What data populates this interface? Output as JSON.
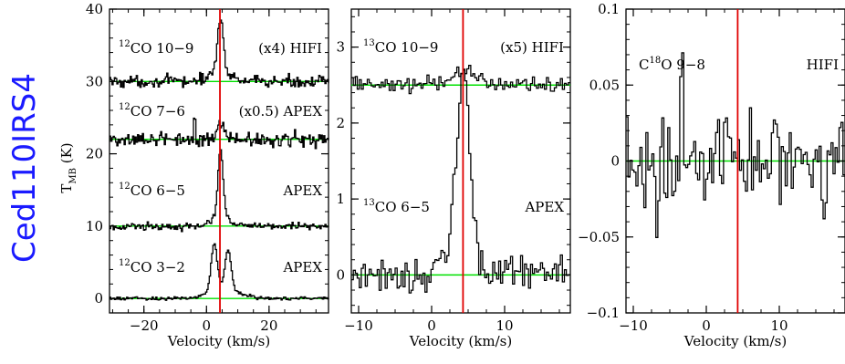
{
  "source_label": "Ced110IRS4",
  "chart_data": [
    {
      "type": "line",
      "xlabel": "Velocity (km/s)",
      "ylabel": "T_MB (K)",
      "xlim": [
        -31,
        39
      ],
      "ylim": [
        -2,
        40
      ],
      "xticks": [
        -20,
        0,
        20
      ],
      "yticks": [
        0,
        10,
        20,
        30,
        40
      ],
      "vline": 4.3,
      "series": [
        {
          "iso": "12",
          "mol": "CO 10-9",
          "factor": "(x4)",
          "tel": "HIFI",
          "baseline": 30,
          "noise": 0.7,
          "comps": [
            {
              "c": 4.3,
              "a": 7.5,
              "w": 0.9
            },
            {
              "c": 4.0,
              "a": 1.5,
              "w": 3.0
            }
          ],
          "spikes": []
        },
        {
          "iso": "12",
          "mol": "CO 7-6",
          "factor": "(x0.5)",
          "tel": "APEX",
          "baseline": 22,
          "noise": 0.9,
          "comps": [
            {
              "c": 4.5,
              "a": 2.2,
              "w": 1.3
            }
          ],
          "spikes": [
            [
              -4,
              3.5
            ],
            [
              0,
              1.5
            ]
          ]
        },
        {
          "iso": "12",
          "mol": "CO 6-5",
          "factor": "",
          "tel": "APEX",
          "baseline": 10,
          "noise": 0.45,
          "comps": [
            {
              "c": 4.3,
              "a": 9,
              "w": 0.8
            },
            {
              "c": 4.4,
              "a": 1.5,
              "w": 2.5
            }
          ],
          "spikes": []
        },
        {
          "iso": "12",
          "mol": "CO 3-2",
          "factor": "",
          "tel": "APEX",
          "baseline": 0,
          "noise": 0.2,
          "comps": [
            {
              "c": 2.3,
              "a": 6.6,
              "w": 1.0
            },
            {
              "c": 6.7,
              "a": 5.5,
              "w": 1.0
            },
            {
              "c": 5.5,
              "a": 1.2,
              "w": 5.0
            }
          ],
          "spikes": []
        }
      ]
    },
    {
      "type": "line",
      "xlabel": "Velocity (km/s)",
      "xlim": [
        -11,
        19
      ],
      "ylim": [
        -0.5,
        3.5
      ],
      "xticks": [
        -10,
        0,
        10
      ],
      "yticks": [
        0,
        1,
        2,
        3
      ],
      "vline": 4.3,
      "series": [
        {
          "iso": "13",
          "mol": "CO 10-9",
          "factor": "(x5)",
          "tel": "HIFI",
          "baseline": 2.5,
          "noise": 0.1,
          "comps": [
            {
              "c": 4.5,
              "a": 0.2,
              "w": 1.5
            }
          ],
          "spikes": []
        },
        {
          "iso": "13",
          "mol": "CO 6-5",
          "factor": "",
          "tel": "APEX",
          "baseline": 0,
          "noise": 0.22,
          "comps": [
            {
              "c": 4.3,
              "a": 2.3,
              "w": 0.85
            },
            {
              "c": 3.5,
              "a": 0.4,
              "w": 1.6
            }
          ],
          "spikes": []
        }
      ]
    },
    {
      "type": "line",
      "xlabel": "Velocity (km/s)",
      "xlim": [
        -11,
        19
      ],
      "ylim": [
        -0.1,
        0.1
      ],
      "xticks": [
        -10,
        0,
        10
      ],
      "yticks": [
        -0.1,
        -0.05,
        0,
        0.05,
        0.1
      ],
      "ytick_labels": [
        "−0.1",
        "−0.05",
        "0",
        "0.05",
        "0.1"
      ],
      "vline": 4.3,
      "series": [
        {
          "iso": "18",
          "mol": "C O 9-8",
          "factor": "",
          "tel": "HIFI",
          "baseline": 0,
          "noise": 0.025,
          "comps": [],
          "spikes": [
            [
              -3.5,
              0.053
            ],
            [
              -6,
              0.04
            ],
            [
              -7,
              -0.04
            ],
            [
              2,
              -0.03
            ],
            [
              6,
              0.038
            ]
          ]
        }
      ]
    }
  ],
  "labels": {
    "p1_s1": {
      "sup": "12",
      "text": "CO 10−9",
      "factor": "(x4)",
      "tel": "HIFI"
    },
    "p1_s2": {
      "sup": "12",
      "text": "CO 7−6",
      "factor": "(x0.5)",
      "tel": "APEX"
    },
    "p1_s3": {
      "sup": "12",
      "text": "CO 6−5",
      "factor": "",
      "tel": "APEX"
    },
    "p1_s4": {
      "sup": "12",
      "text": "CO 3−2",
      "factor": "",
      "tel": "APEX"
    },
    "p2_s1": {
      "sup": "13",
      "text": "CO 10−9",
      "factor": "(x5)",
      "tel": "HIFI"
    },
    "p2_s2": {
      "sup": "13",
      "text": "CO 6−5",
      "factor": "",
      "tel": "APEX"
    },
    "p3_s1": {
      "pre": "C",
      "sup": "18",
      "text": "O 9−8",
      "factor": "",
      "tel": "HIFI"
    }
  },
  "colors": {
    "vline": "#e00000",
    "baseline": "#00e000",
    "spectrum": "#000000",
    "side_label": "#1a1aff"
  }
}
